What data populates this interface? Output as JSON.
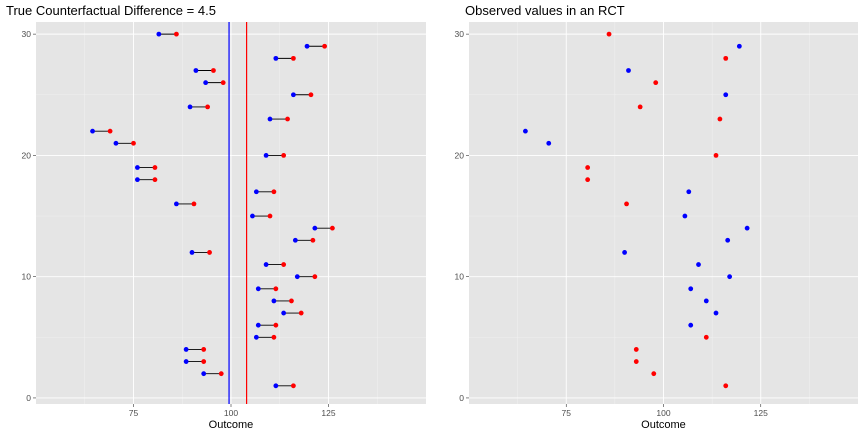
{
  "colors": {
    "panel_bg": "#e5e5e5",
    "control": "#0000ff",
    "treated": "#ff0000",
    "segment": "#000000",
    "vline_control": "#0000ff",
    "vline_treated": "#ff0000"
  },
  "chart_data": [
    {
      "type": "scatter",
      "title": "True Counterfactual Difference = 4.5",
      "xlabel": "Outcome",
      "ylabel": "",
      "xlim": [
        50,
        150
      ],
      "ylim": [
        0,
        30
      ],
      "x_ticks": [
        75,
        100,
        125
      ],
      "y_ticks": [
        0,
        10,
        20,
        30
      ],
      "x_tick_labels": [
        "75",
        "100",
        "125"
      ],
      "y_tick_labels": [
        "0",
        "10",
        "20",
        "30"
      ],
      "grid": true,
      "vertical_lines": [
        {
          "x": 99.5,
          "color": "#0000ff"
        },
        {
          "x": 104.0,
          "color": "#ff0000"
        }
      ],
      "pairs": [
        {
          "y": 1,
          "control": 111.5,
          "treated": 116.0
        },
        {
          "y": 2,
          "control": 93.0,
          "treated": 97.5
        },
        {
          "y": 3,
          "control": 88.5,
          "treated": 93.0
        },
        {
          "y": 4,
          "control": 88.5,
          "treated": 93.0
        },
        {
          "y": 5,
          "control": 106.5,
          "treated": 111.0
        },
        {
          "y": 6,
          "control": 107.0,
          "treated": 111.5
        },
        {
          "y": 7,
          "control": 113.5,
          "treated": 118.0
        },
        {
          "y": 8,
          "control": 111.0,
          "treated": 115.5
        },
        {
          "y": 9,
          "control": 107.0,
          "treated": 111.5
        },
        {
          "y": 10,
          "control": 117.0,
          "treated": 121.5
        },
        {
          "y": 11,
          "control": 109.0,
          "treated": 113.5
        },
        {
          "y": 12,
          "control": 90.0,
          "treated": 94.5
        },
        {
          "y": 13,
          "control": 116.5,
          "treated": 121.0
        },
        {
          "y": 14,
          "control": 121.5,
          "treated": 126.0
        },
        {
          "y": 15,
          "control": 105.5,
          "treated": 110.0
        },
        {
          "y": 16,
          "control": 86.0,
          "treated": 90.5
        },
        {
          "y": 17,
          "control": 106.5,
          "treated": 111.0
        },
        {
          "y": 18,
          "control": 76.0,
          "treated": 80.5
        },
        {
          "y": 19,
          "control": 76.0,
          "treated": 80.5
        },
        {
          "y": 20,
          "control": 109.0,
          "treated": 113.5
        },
        {
          "y": 21,
          "control": 70.5,
          "treated": 75.0
        },
        {
          "y": 22,
          "control": 64.5,
          "treated": 69.0
        },
        {
          "y": 23,
          "control": 110.0,
          "treated": 114.5
        },
        {
          "y": 24,
          "control": 89.5,
          "treated": 94.0
        },
        {
          "y": 25,
          "control": 116.0,
          "treated": 120.5
        },
        {
          "y": 26,
          "control": 93.5,
          "treated": 98.0
        },
        {
          "y": 27,
          "control": 91.0,
          "treated": 95.5
        },
        {
          "y": 28,
          "control": 111.5,
          "treated": 116.0
        },
        {
          "y": 29,
          "control": 119.5,
          "treated": 124.0
        },
        {
          "y": 30,
          "control": 81.5,
          "treated": 86.0
        }
      ]
    },
    {
      "type": "scatter",
      "title": "Observed values in an RCT",
      "xlabel": "Outcome",
      "ylabel": "",
      "xlim": [
        50,
        150
      ],
      "ylim": [
        0,
        30
      ],
      "x_ticks": [
        75,
        100,
        125
      ],
      "y_ticks": [
        0,
        10,
        20,
        30
      ],
      "x_tick_labels": [
        "75",
        "100",
        "125"
      ],
      "y_tick_labels": [
        "0",
        "10",
        "20",
        "30"
      ],
      "grid": true,
      "points": [
        {
          "y": 1,
          "x": 116.0,
          "group": "treated"
        },
        {
          "y": 2,
          "x": 97.5,
          "group": "treated"
        },
        {
          "y": 3,
          "x": 93.0,
          "group": "treated"
        },
        {
          "y": 4,
          "x": 93.0,
          "group": "treated"
        },
        {
          "y": 5,
          "x": 111.0,
          "group": "treated"
        },
        {
          "y": 6,
          "x": 107.0,
          "group": "control"
        },
        {
          "y": 7,
          "x": 113.5,
          "group": "control"
        },
        {
          "y": 8,
          "x": 111.0,
          "group": "control"
        },
        {
          "y": 9,
          "x": 107.0,
          "group": "control"
        },
        {
          "y": 10,
          "x": 117.0,
          "group": "control"
        },
        {
          "y": 11,
          "x": 109.0,
          "group": "control"
        },
        {
          "y": 12,
          "x": 90.0,
          "group": "control"
        },
        {
          "y": 13,
          "x": 116.5,
          "group": "control"
        },
        {
          "y": 14,
          "x": 121.5,
          "group": "control"
        },
        {
          "y": 15,
          "x": 105.5,
          "group": "control"
        },
        {
          "y": 16,
          "x": 90.5,
          "group": "treated"
        },
        {
          "y": 17,
          "x": 106.5,
          "group": "control"
        },
        {
          "y": 18,
          "x": 80.5,
          "group": "treated"
        },
        {
          "y": 19,
          "x": 80.5,
          "group": "treated"
        },
        {
          "y": 20,
          "x": 113.5,
          "group": "treated"
        },
        {
          "y": 21,
          "x": 70.5,
          "group": "control"
        },
        {
          "y": 22,
          "x": 64.5,
          "group": "control"
        },
        {
          "y": 23,
          "x": 114.5,
          "group": "treated"
        },
        {
          "y": 24,
          "x": 94.0,
          "group": "treated"
        },
        {
          "y": 25,
          "x": 116.0,
          "group": "control"
        },
        {
          "y": 26,
          "x": 98.0,
          "group": "treated"
        },
        {
          "y": 27,
          "x": 91.0,
          "group": "control"
        },
        {
          "y": 28,
          "x": 116.0,
          "group": "treated"
        },
        {
          "y": 29,
          "x": 119.5,
          "group": "control"
        },
        {
          "y": 30,
          "x": 86.0,
          "group": "treated"
        }
      ]
    }
  ]
}
